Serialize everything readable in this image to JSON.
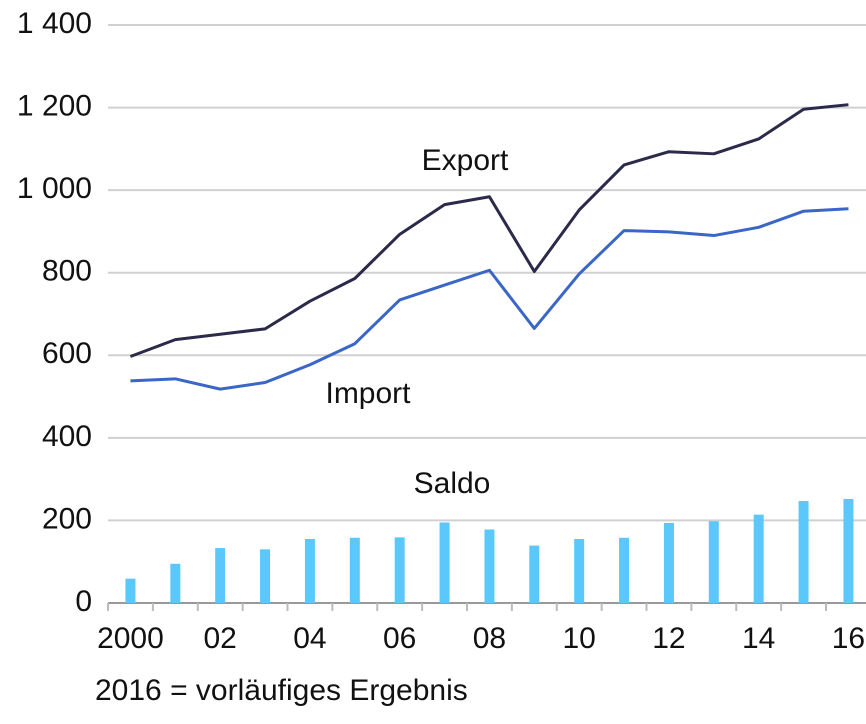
{
  "chart_data": {
    "type": "line",
    "categories": [
      "2000",
      null,
      "02",
      null,
      "04",
      null,
      "06",
      null,
      "08",
      null,
      "10",
      null,
      "12",
      null,
      "14",
      null,
      "16"
    ],
    "series": [
      {
        "name": "Export",
        "type": "line",
        "color": "#2b2a4a",
        "values": [
          597,
          638,
          651,
          664,
          731,
          786,
          893,
          965,
          984,
          803,
          952,
          1061,
          1093,
          1088,
          1124,
          1196,
          1207
        ]
      },
      {
        "name": "Import",
        "type": "line",
        "color": "#3a66c8",
        "values": [
          538,
          543,
          518,
          534,
          577,
          628,
          734,
          770,
          806,
          665,
          797,
          902,
          899,
          890,
          910,
          949,
          955
        ]
      },
      {
        "name": "Saldo",
        "type": "bar",
        "color": "#5ac8fa",
        "values": [
          59,
          95,
          133,
          130,
          155,
          158,
          159,
          195,
          178,
          139,
          155,
          158,
          194,
          198,
          214,
          247,
          252
        ]
      }
    ],
    "ylim": [
      0,
      1400
    ],
    "yticks": [
      0,
      200,
      400,
      600,
      800,
      {
        "value": 1000,
        "label": "1 000"
      },
      {
        "value": 1200,
        "label": "1 200"
      },
      {
        "value": 1400,
        "label": "1 400"
      }
    ],
    "grid": true,
    "footnote": "2016 = vorläufiges Ergebnis"
  }
}
